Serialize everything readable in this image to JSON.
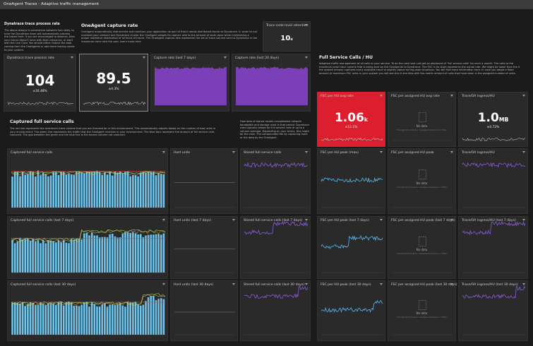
{
  "title_bar": "OneAgent Traces - Adaptive traffic management",
  "intro": {
    "left_heading": "Dynatrace trace process rate",
    "left_text": "The above always is somewhere between two rates, to tune the Dynatrace team will automatically process the traces here. If you are encouraged to observe, then your traces doesn't have with their resources, or start with the Live Card. You should either reduce the load coming from the OneAgents or add more tracing nodes to your system.",
    "capture_heading": "OneAgent capture rate",
    "capture_text": "OneAgent automatically instruments and monitors your application as part of that it sends distributed traces to Dynatrace. In order to not overload your network and Dynatrace cluster the OneAgent adapts its capture rate to the amount of work done while maintaining a proper statistical distribution of all kinds of traces. The OneAgent capture rate represents the set of trace volume sent to Dynatrace in the maximum trace rate the user. Learn more here",
    "calls_heading": "Captured full service calls",
    "calls_text": "The red line represents the maximum trace volume that you are licensed for in this environment. This automatically adjusts based on the number of host units in your environment. The green line represents the traffic that the OneAgent receives in your environment. The blue bars represent the amount of full service calls captured. The gap between the green and the blue line is the excess volume not captured.",
    "calls_side_text": "How data of stored results consolidated network bandwidth and storage used in that period. Dynatrace uses typically allows for full service calls of up to a volume average. Depending on your terms, this might be the case. The compounded fee by capturing more or the data by the OneAgent.",
    "fsc_heading": "Full Service Calls / HU",
    "fsc_text": "Adaptive traffic management of all calls to your service. To do the cost host unit get an allotment of \"full service calls\" for each a month. The calls to the maximum peak trace volume that is being sent by the OneAgents to Dynatrace. The FSC in its store represents the actual rate. We might be lower than the if the system already captures every available trace or slightly above during peak situations. You will find more information here. In case you adapt a fixed amount of maximum FSC units in your system you will see this in the tiles with the metric amount of calls that have been in the assigned number of units."
  },
  "tiles": [
    {
      "title": "Trace code level retention",
      "value": "10",
      "unit": "d"
    },
    {
      "title": "Dynatrace trace process rate",
      "value": "104",
      "change": "±16.48%"
    },
    {
      "value": "89.5",
      "change": "±4.3%"
    },
    {
      "title": "Capture rate (last 7 days)"
    },
    {
      "title": "Capture rate (last 30 days)"
    },
    {
      "title": "FSC per HU avg rate",
      "value": "1.06",
      "unit": "k",
      "change": "±12.1%"
    },
    {
      "title": "FSC per assigned HU avg rate"
    },
    {
      "title": "Trace/OA ingress/HU",
      "value": "1.0",
      "unit": "MB",
      "change": "±0.72%"
    }
  ],
  "grid": [
    [
      "Captured full service calls",
      "Host units",
      "Stored full service calls",
      "FSC per HU peak (max)",
      "FSC per assigned HU peak",
      "Trace/OA ingress/HU"
    ],
    [
      "Captured full service calls (last 7 days)",
      "Host units (last 7 days)",
      "Stored full service calls (last 7 days)",
      "FSC per HU peak (last 7 days)",
      "FSC per assigned HU peak (last 7 days)",
      "Trace/OA ingress/HU (last 7 days)"
    ],
    [
      "Captured full service calls (last 30 days)",
      "Host units (last 30 days)",
      "Stored full service calls (last 30 days)",
      "FSC per HU peak (last 30 days)",
      "FSC per assigned HU peak (last 30 days)",
      "Trace/OA ingress/HU (last 30 days)"
    ]
  ],
  "no_data": "No data",
  "no_data_hint": "Change time frame, management zone or filter"
}
